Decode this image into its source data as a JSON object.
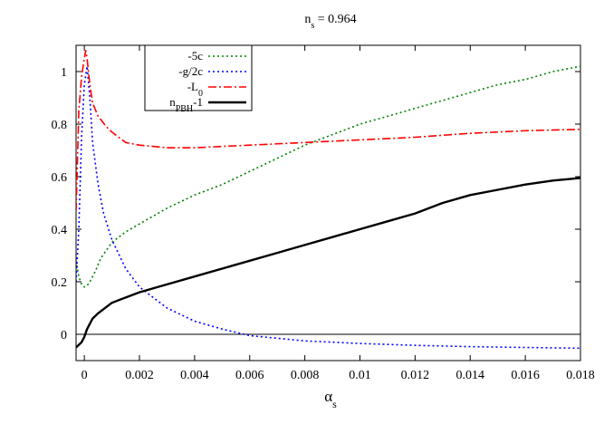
{
  "chart_data": {
    "type": "line",
    "title": {
      "main": "n",
      "sub": "s",
      "rest": " = 0.964"
    },
    "xlabel": {
      "main": "α",
      "sub": "s"
    },
    "ylabel": "",
    "xlim": [
      -0.0003,
      0.018
    ],
    "ylim": [
      -0.1,
      1.1
    ],
    "xticks": [
      0,
      0.002,
      0.004,
      0.006,
      0.008,
      0.01,
      0.012,
      0.014,
      0.016,
      0.018
    ],
    "xtick_labels": [
      "0",
      "0.002",
      "0.004",
      "0.006",
      "0.008",
      "0.01",
      "0.012",
      "0.014",
      "0.016",
      "0.018"
    ],
    "yticks": [
      0,
      0.2,
      0.4,
      0.6,
      0.8,
      1
    ],
    "ytick_labels": [
      "0",
      "0.2",
      "0.4",
      "0.6",
      "0.8",
      "1"
    ],
    "zero_line": true,
    "grid": false,
    "legend_position": "top-left",
    "series": [
      {
        "id": "minus-5c",
        "legend": {
          "main": "-5c",
          "sub": "",
          "rest": ""
        },
        "color": "#008000",
        "dash": "2,3",
        "width": 1.6,
        "points": [
          [
            -0.0003,
            0.28
          ],
          [
            -0.0002,
            0.22
          ],
          [
            -0.0001,
            0.19
          ],
          [
            0,
            0.18
          ],
          [
            0.0001,
            0.185
          ],
          [
            0.0002,
            0.2
          ],
          [
            0.0004,
            0.24
          ],
          [
            0.0006,
            0.29
          ],
          [
            0.001,
            0.35
          ],
          [
            0.0015,
            0.39
          ],
          [
            0.002,
            0.42
          ],
          [
            0.003,
            0.48
          ],
          [
            0.004,
            0.53
          ],
          [
            0.005,
            0.57
          ],
          [
            0.006,
            0.62
          ],
          [
            0.007,
            0.67
          ],
          [
            0.008,
            0.72
          ],
          [
            0.009,
            0.76
          ],
          [
            0.01,
            0.8
          ],
          [
            0.011,
            0.83
          ],
          [
            0.012,
            0.86
          ],
          [
            0.013,
            0.89
          ],
          [
            0.014,
            0.92
          ],
          [
            0.015,
            0.95
          ],
          [
            0.016,
            0.97
          ],
          [
            0.017,
            1
          ],
          [
            0.018,
            1.02
          ]
        ]
      },
      {
        "id": "minus-g-over-2c",
        "legend": {
          "main": "-g/2c",
          "sub": "",
          "rest": ""
        },
        "color": "#0000ff",
        "dash": "2,3",
        "width": 1.6,
        "points": [
          [
            -0.0003,
            0.2
          ],
          [
            -0.0002,
            0.4
          ],
          [
            -0.0001,
            0.75
          ],
          [
            0,
            0.95
          ],
          [
            0.0001,
            1.02
          ],
          [
            0.0002,
            0.9
          ],
          [
            0.0003,
            0.73
          ],
          [
            0.0005,
            0.57
          ],
          [
            0.0007,
            0.46
          ],
          [
            0.001,
            0.36
          ],
          [
            0.0015,
            0.25
          ],
          [
            0.002,
            0.18
          ],
          [
            0.003,
            0.1
          ],
          [
            0.004,
            0.05
          ],
          [
            0.005,
            0.02
          ],
          [
            0.006,
            -0.005
          ],
          [
            0.008,
            -0.025
          ],
          [
            0.01,
            -0.035
          ],
          [
            0.012,
            -0.042
          ],
          [
            0.014,
            -0.047
          ],
          [
            0.016,
            -0.05
          ],
          [
            0.018,
            -0.053
          ]
        ]
      },
      {
        "id": "minus-L0",
        "legend": {
          "main": "-L",
          "sub": "0",
          "rest": ""
        },
        "color": "#ff0000",
        "dash": "9,3,2,3",
        "width": 1.6,
        "points": [
          [
            -0.0003,
            0.47
          ],
          [
            -0.0002,
            0.85
          ],
          [
            -0.0001,
            0.98
          ],
          [
            0,
            1.05
          ],
          [
            5e-05,
            1.08
          ],
          [
            0.0001,
            1.05
          ],
          [
            0.0002,
            0.95
          ],
          [
            0.0003,
            0.88
          ],
          [
            0.0005,
            0.83
          ],
          [
            0.0008,
            0.79
          ],
          [
            0.001,
            0.77
          ],
          [
            0.0015,
            0.73
          ],
          [
            0.002,
            0.72
          ],
          [
            0.003,
            0.71
          ],
          [
            0.004,
            0.71
          ],
          [
            0.005,
            0.715
          ],
          [
            0.006,
            0.72
          ],
          [
            0.007,
            0.725
          ],
          [
            0.008,
            0.73
          ],
          [
            0.009,
            0.735
          ],
          [
            0.01,
            0.74
          ],
          [
            0.012,
            0.75
          ],
          [
            0.014,
            0.765
          ],
          [
            0.016,
            0.775
          ],
          [
            0.018,
            0.78
          ]
        ]
      },
      {
        "id": "nPBH-minus-1",
        "legend": {
          "main": "n",
          "sub": "PBH",
          "rest": "-1"
        },
        "color": "#000000",
        "dash": "",
        "width": 2.4,
        "points": [
          [
            -0.0003,
            -0.05
          ],
          [
            -0.0001,
            -0.03
          ],
          [
            0,
            -0.01
          ],
          [
            0.0001,
            0.02
          ],
          [
            0.0003,
            0.06
          ],
          [
            0.0005,
            0.08
          ],
          [
            0.001,
            0.12
          ],
          [
            0.0015,
            0.14
          ],
          [
            0.002,
            0.16
          ],
          [
            0.003,
            0.19
          ],
          [
            0.004,
            0.22
          ],
          [
            0.005,
            0.25
          ],
          [
            0.006,
            0.28
          ],
          [
            0.007,
            0.31
          ],
          [
            0.008,
            0.34
          ],
          [
            0.009,
            0.37
          ],
          [
            0.01,
            0.4
          ],
          [
            0.011,
            0.43
          ],
          [
            0.012,
            0.46
          ],
          [
            0.013,
            0.5
          ],
          [
            0.014,
            0.53
          ],
          [
            0.015,
            0.55
          ],
          [
            0.016,
            0.57
          ],
          [
            0.017,
            0.585
          ],
          [
            0.018,
            0.595
          ]
        ]
      }
    ]
  }
}
